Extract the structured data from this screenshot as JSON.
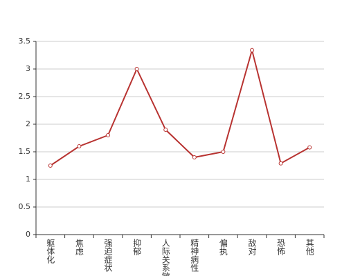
{
  "chart_data": {
    "type": "line",
    "categories": [
      "躯体化",
      "焦虑",
      "强迫症状",
      "抑郁",
      "人际关系敏感",
      "精神病性",
      "偏执",
      "敌对",
      "恐怖",
      "其他"
    ],
    "values": [
      1.25,
      1.6,
      1.8,
      3.0,
      1.9,
      1.4,
      1.5,
      3.34,
      1.29,
      1.58
    ],
    "color": "#b83331",
    "ylim": [
      0,
      3.5
    ],
    "yticks": [
      0,
      0.5,
      1,
      1.5,
      2,
      2.5,
      3,
      3.5
    ],
    "grid": true
  }
}
